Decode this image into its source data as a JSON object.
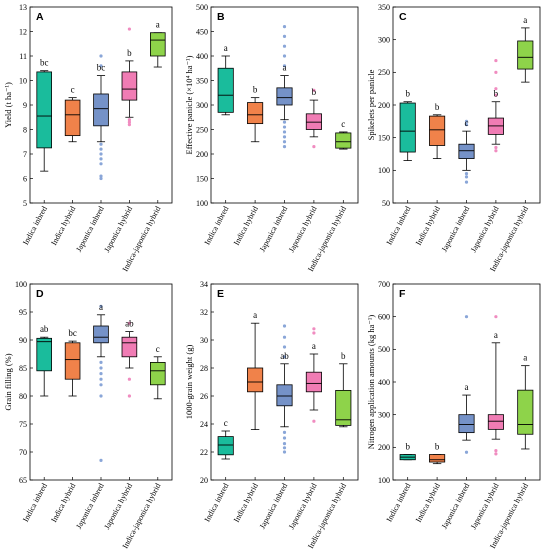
{
  "colors": {
    "indica_inbred": "#1abc9c",
    "indica_hybrid": "#f0824a",
    "japonica_inbred": "#7592c8",
    "japonica_hybrid": "#f07cb4",
    "indica_japonica_hybrid": "#8ed34a",
    "japonica_outliers": "#8aa6d8",
    "japonica_hybrid_outliers": "#f08cc0"
  },
  "chart_data": [
    {
      "type": "box",
      "panel": "A",
      "ylabel": "Yield (t ha⁻¹)",
      "ylim": [
        5,
        13
      ],
      "yticks": [
        5,
        6,
        7,
        8,
        9,
        10,
        11,
        12,
        13
      ],
      "categories": [
        "Indica inbred",
        "Indica hybrid",
        "Japonica inbred",
        "Japonica hybrid",
        "Indica-japonica hybrid"
      ],
      "boxes": [
        {
          "min": 6.3,
          "q1": 7.25,
          "median": 8.55,
          "q3": 10.35,
          "max": 10.4,
          "letter": "bc"
        },
        {
          "min": 7.5,
          "q1": 7.75,
          "median": 8.6,
          "q3": 9.2,
          "max": 9.3,
          "letter": "c"
        },
        {
          "min": 7.5,
          "q1": 8.15,
          "median": 8.85,
          "q3": 9.45,
          "max": 10.2,
          "letter": "bc",
          "outliers": [
            6.0,
            6.1,
            6.6,
            6.8,
            7.0,
            7.2,
            7.4,
            10.6,
            11.0
          ]
        },
        {
          "min": 8.5,
          "q1": 9.2,
          "median": 9.65,
          "q3": 10.35,
          "max": 10.8,
          "letter": "b",
          "outliers": [
            8.2,
            8.3,
            8.4,
            12.1
          ]
        },
        {
          "min": 10.55,
          "q1": 11.0,
          "median": 11.65,
          "q3": 11.95,
          "max": 11.95,
          "letter": "a"
        }
      ]
    },
    {
      "type": "box",
      "panel": "B",
      "ylabel": "Effective panicle (×10⁴ ha⁻¹)",
      "ylim": [
        100,
        500
      ],
      "yticks": [
        100,
        150,
        200,
        250,
        300,
        350,
        400,
        450,
        500
      ],
      "categories": [
        "Indica inbred",
        "Indica hybrid",
        "Japonica inbred",
        "Japonica hybrid",
        "Indica-japonica hybrid"
      ],
      "boxes": [
        {
          "min": 280,
          "q1": 285,
          "median": 320,
          "q3": 375,
          "max": 400,
          "letter": "a"
        },
        {
          "min": 225,
          "q1": 262,
          "median": 280,
          "q3": 305,
          "max": 315,
          "letter": "b"
        },
        {
          "min": 270,
          "q1": 300,
          "median": 315,
          "q3": 335,
          "max": 360,
          "letter": "a",
          "outliers": [
            215,
            225,
            235,
            245,
            255,
            265,
            380,
            400,
            420,
            440,
            460
          ]
        },
        {
          "min": 235,
          "q1": 250,
          "median": 265,
          "q3": 282,
          "max": 310,
          "letter": "b",
          "outliers": [
            215,
            330
          ]
        },
        {
          "min": 210,
          "q1": 212,
          "median": 225,
          "q3": 243,
          "max": 245,
          "letter": "c"
        }
      ]
    },
    {
      "type": "box",
      "panel": "C",
      "ylabel": "Spikelets per panicle",
      "ylim": [
        50,
        350
      ],
      "yticks": [
        50,
        100,
        150,
        200,
        250,
        300,
        350
      ],
      "categories": [
        "Indica inbred",
        "Indica hybrid",
        "Japonica inbred",
        "Japonica hybrid",
        "Indica-japonica hybrid"
      ],
      "boxes": [
        {
          "min": 115,
          "q1": 128,
          "median": 160,
          "q3": 203,
          "max": 205,
          "letter": "b"
        },
        {
          "min": 118,
          "q1": 138,
          "median": 162,
          "q3": 183,
          "max": 185,
          "letter": "b"
        },
        {
          "min": 100,
          "q1": 118,
          "median": 130,
          "q3": 140,
          "max": 160,
          "letter": "c",
          "outliers": [
            82,
            90,
            95,
            170,
            175
          ]
        },
        {
          "min": 140,
          "q1": 155,
          "median": 168,
          "q3": 180,
          "max": 205,
          "letter": "b",
          "outliers": [
            130,
            135,
            215,
            225,
            250,
            268
          ]
        },
        {
          "min": 235,
          "q1": 255,
          "median": 273,
          "q3": 298,
          "max": 318,
          "letter": "a"
        }
      ]
    },
    {
      "type": "box",
      "panel": "D",
      "ylabel": "Grain filling (%)",
      "ylim": [
        65,
        100
      ],
      "yticks": [
        65,
        70,
        75,
        80,
        85,
        90,
        95,
        100
      ],
      "categories": [
        "Indica inbred",
        "Indica hybrid",
        "Japonica inbred",
        "Japonica hybrid",
        "Indica-japonica hybrid"
      ],
      "boxes": [
        {
          "min": 80,
          "q1": 84.5,
          "median": 89.7,
          "q3": 90.3,
          "max": 90.5,
          "letter": "ab"
        },
        {
          "min": 80,
          "q1": 83,
          "median": 86.5,
          "q3": 89.5,
          "max": 89.8,
          "letter": "bc"
        },
        {
          "min": 87,
          "q1": 89.5,
          "median": 90.5,
          "q3": 92.5,
          "max": 94.5,
          "letter": "a",
          "outliers": [
            68.5,
            80,
            82,
            83,
            84,
            85,
            86,
            96
          ]
        },
        {
          "min": 85,
          "q1": 87,
          "median": 89.5,
          "q3": 90.5,
          "max": 91.5,
          "letter": "ab",
          "outliers": [
            80,
            83,
            93
          ]
        },
        {
          "min": 79.5,
          "q1": 82,
          "median": 84.5,
          "q3": 86,
          "max": 87,
          "letter": "c"
        }
      ]
    },
    {
      "type": "box",
      "panel": "E",
      "ylabel": "1000-grain weight (g)",
      "ylim": [
        20,
        34
      ],
      "yticks": [
        20,
        22,
        24,
        26,
        28,
        30,
        32,
        34
      ],
      "categories": [
        "Indica inbred",
        "Indica hybrid",
        "Japonica inbred",
        "Japonica hybrid",
        "Indica-japonica hybrid"
      ],
      "boxes": [
        {
          "min": 21.5,
          "q1": 21.8,
          "median": 22.5,
          "q3": 23.1,
          "max": 23.5,
          "letter": "c"
        },
        {
          "min": 23.6,
          "q1": 26.3,
          "median": 27.0,
          "q3": 28.0,
          "max": 31.2,
          "letter": "a"
        },
        {
          "min": 23.8,
          "q1": 25.3,
          "median": 26.0,
          "q3": 26.8,
          "max": 28.3,
          "letter": "ab",
          "outliers": [
            22.0,
            22.3,
            22.6,
            23.0,
            23.4,
            28.8,
            29.5,
            30.2,
            31.0
          ]
        },
        {
          "min": 25.0,
          "q1": 26.3,
          "median": 26.9,
          "q3": 27.7,
          "max": 29.0,
          "letter": "a",
          "outliers": [
            24.2,
            30.5,
            30.8
          ]
        },
        {
          "min": 23.8,
          "q1": 23.9,
          "median": 24.3,
          "q3": 26.4,
          "max": 28.3,
          "letter": "b"
        }
      ]
    },
    {
      "type": "box",
      "panel": "F",
      "ylabel": "Nitrogen application amounts (kg ha⁻¹)",
      "ylim": [
        100,
        700
      ],
      "yticks": [
        100,
        200,
        300,
        400,
        500,
        600,
        700
      ],
      "categories": [
        "Indica inbred",
        "Indica hybrid",
        "Japonica inbred",
        "Japonica hybrid",
        "Indica-japonica hybrid"
      ],
      "boxes": [
        {
          "min": 162,
          "q1": 162,
          "median": 170,
          "q3": 178,
          "max": 178,
          "letter": "b"
        },
        {
          "min": 150,
          "q1": 155,
          "median": 162,
          "q3": 178,
          "max": 178,
          "letter": "b"
        },
        {
          "min": 222,
          "q1": 245,
          "median": 270,
          "q3": 300,
          "max": 360,
          "letter": "a",
          "outliers": [
            185,
            600
          ]
        },
        {
          "min": 225,
          "q1": 255,
          "median": 280,
          "q3": 300,
          "max": 520,
          "letter": "a",
          "outliers": [
            180,
            190,
            600
          ]
        },
        {
          "min": 195,
          "q1": 240,
          "median": 270,
          "q3": 375,
          "max": 450,
          "letter": "a"
        }
      ]
    }
  ]
}
